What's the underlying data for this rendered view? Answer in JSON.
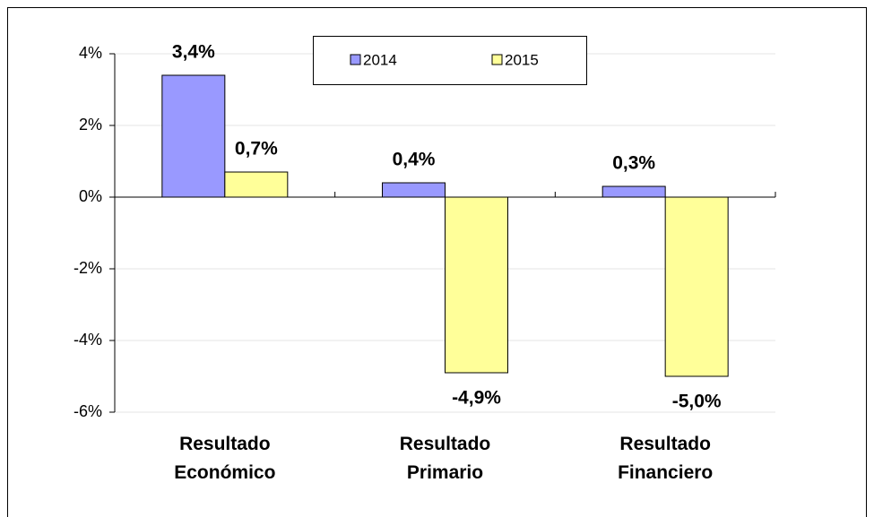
{
  "chart_data": {
    "type": "bar",
    "categories": [
      "Resultado Económico",
      "Resultado Primario",
      "Resultado Financiero"
    ],
    "series": [
      {
        "name": "2014",
        "color": "#9999ff",
        "values": [
          3.4,
          0.4,
          0.3
        ],
        "value_labels": [
          "3,4%",
          "0,4%",
          "0,3%"
        ]
      },
      {
        "name": "2015",
        "color": "#ffff99",
        "values": [
          0.7,
          -4.9,
          -5.0
        ],
        "value_labels": [
          "0,7%",
          "-4,9%",
          "-5,0%"
        ]
      }
    ],
    "ylim": [
      -6,
      4
    ],
    "yticks": [
      {
        "value": 4,
        "label": "4%"
      },
      {
        "value": 2,
        "label": "2%"
      },
      {
        "value": 0,
        "label": "0%"
      },
      {
        "value": -2,
        "label": "-2%"
      },
      {
        "value": -4,
        "label": "-4%"
      },
      {
        "value": -6,
        "label": "-6%"
      }
    ],
    "grid": true,
    "legend": "top"
  }
}
